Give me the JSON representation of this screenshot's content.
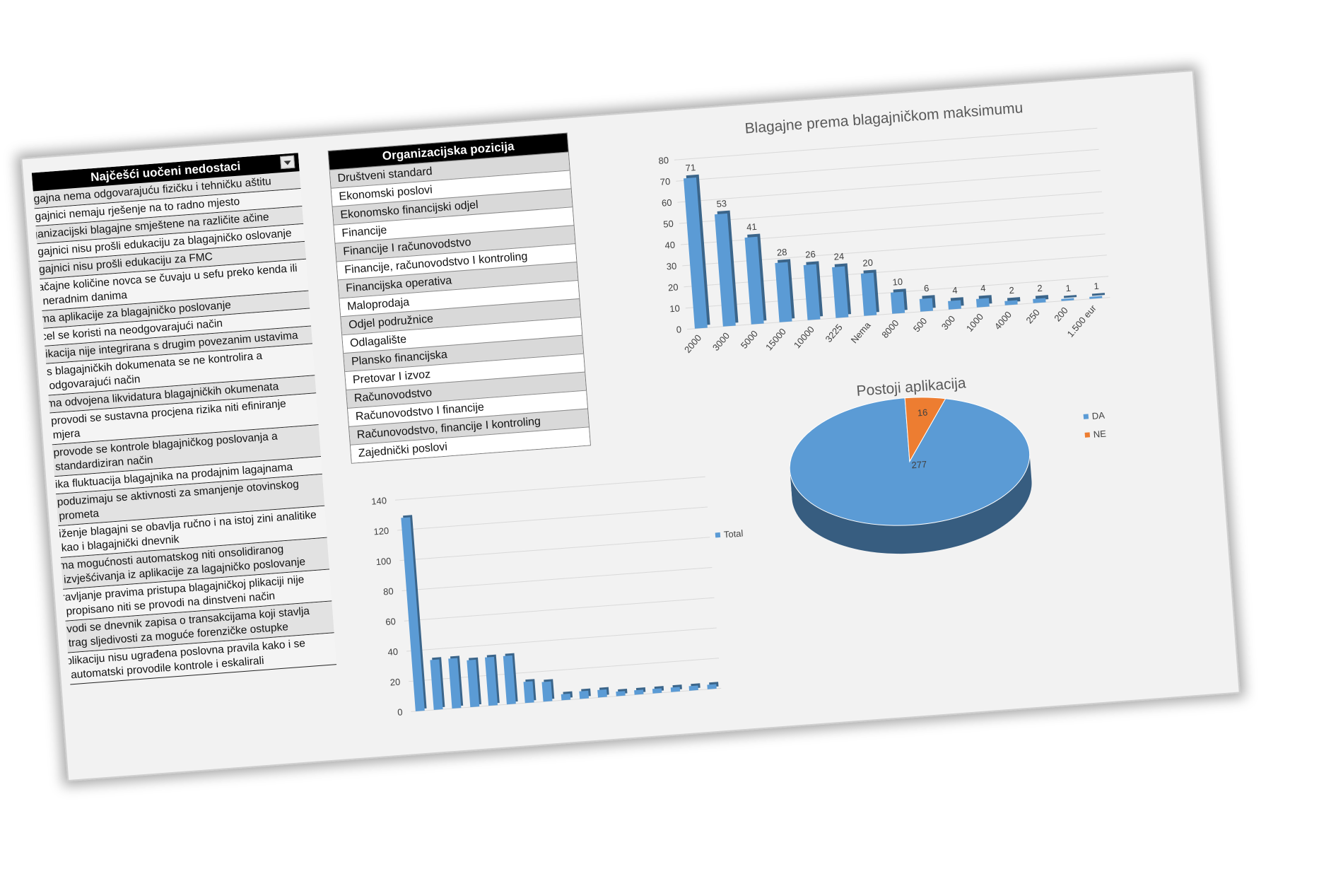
{
  "issues": {
    "header": "Najčešći uočeni nedostaci",
    "items": [
      "lagajna nema odgovarajuću fizičku i tehničku aštitu",
      "lagajnici nemaju rješenje na to radno mjesto",
      "rganizacijski blagajne smještene na različite ačine",
      "lagajnici nisu prošli edukaciju za blagajničko oslovanje",
      "lagajnici nisu prošli edukaciju za FMC",
      "načajne količine novca se čuvaju u sefu preko kenda ili neradnim danima",
      "ema aplikacije za blagajničko poslovanje",
      "xcel se koristi na neodgovarajući način",
      "plikacija nije integrirana s drugim povezanim ustavima",
      "pis blagajničkih dokumenata se ne kontrolira a odgovarajući način",
      "ema odvojena likvidatura blagajničkih okumenata",
      "e provodi se sustavna procjena rizika niti efiniranje mjera",
      "e provode se kontrole blagajničkog poslovanja a standardiziran način",
      "elika fluktuacija blagajnika na prodajnim lagajnama",
      "e poduzimaju se aktivnosti za smanjenje otovinskog prometa",
      "njiženje blagajni se obavlja ručno i na istoj zini analitike kao i blagajnički dnevnik",
      "ema mogućnosti automatskog niti onsolidiranog izvješćivanja iz aplikacije za lagajničko poslovanje",
      "pravljanje pravima pristupa blagajničkoj plikaciji nije propisano niti se provodi na dinstveni način",
      "e vodi se dnevnik zapisa o transakcijama koji stavlja trag sljedivosti za moguće forenzičke ostupke",
      "aplikaciju nisu ugrađena poslovna pravila kako i se automatski provodile kontrole i eskalirali"
    ]
  },
  "org": {
    "header": "Organizacijska pozicija",
    "items": [
      "Društveni standard",
      "Ekonomski poslovi",
      "Ekonomsko financijski odjel",
      "Financije",
      "Financije I računovodstvo",
      "Financije, računovodstvo I kontroling",
      "Financijska operativa",
      "Maloprodaja",
      "Odjel podružnice",
      "Odlagalište",
      "Plansko financijska",
      "Pretovar I izvoz",
      "Računovodstvo",
      "Računovodstvo I financije",
      "Računovodstvo, financije I kontroling",
      "Zajednički poslovi"
    ]
  },
  "chart_data": [
    {
      "type": "bar",
      "title": "Blagajne prema blagajničkom maksimumu",
      "categories": [
        "2000",
        "3000",
        "5000",
        "15000",
        "10000",
        "3225",
        "Nema",
        "8000",
        "500",
        "300",
        "1000",
        "4000",
        "250",
        "200",
        "1.500 eur"
      ],
      "values": [
        71,
        53,
        41,
        28,
        26,
        24,
        20,
        10,
        6,
        4,
        4,
        2,
        2,
        1,
        1
      ],
      "ylim": [
        0,
        80
      ],
      "yticks": [
        0,
        10,
        20,
        30,
        40,
        50,
        60,
        70,
        80
      ],
      "color": "#5b9bd5",
      "grid": true
    },
    {
      "type": "pie",
      "title": "Postoji aplikacija",
      "slices": [
        {
          "name": "DA",
          "value": 277,
          "color": "#5b9bd5"
        },
        {
          "name": "NE",
          "value": 16,
          "color": "#ed7d31"
        }
      ],
      "legend": [
        "DA",
        "NE"
      ],
      "legend_position": "right"
    },
    {
      "type": "bar",
      "title": "",
      "values": [
        128,
        33,
        33,
        31,
        32,
        32,
        14,
        13,
        4,
        5,
        5,
        3,
        3,
        3,
        3,
        3,
        3
      ],
      "ylim": [
        0,
        140
      ],
      "yticks": [
        0,
        20,
        40,
        60,
        80,
        100,
        120,
        140
      ],
      "legend": [
        "Total"
      ],
      "color": "#5b9bd5",
      "grid": true
    }
  ]
}
